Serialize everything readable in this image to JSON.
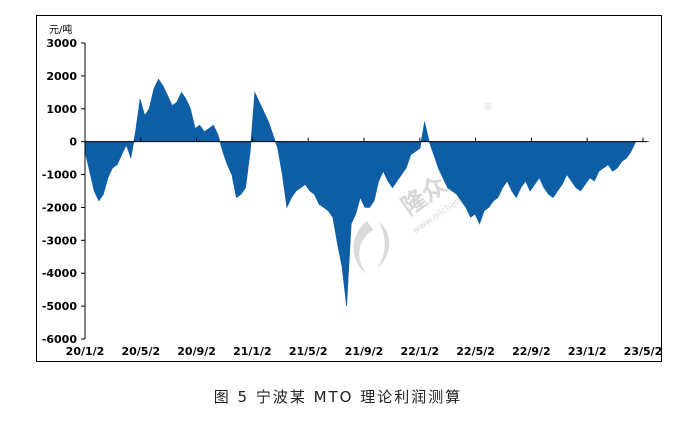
{
  "figure_caption": "图 5  宁波某 MTO 理论利润测算",
  "watermark": {
    "brand": "隆众资讯",
    "site": "www.oilchem.net",
    "mark": "®"
  },
  "chart_data": {
    "type": "area",
    "title": "",
    "ylabel": "元/吨",
    "xlabel": "",
    "ylim": [
      -6000,
      3000
    ],
    "yticks": [
      3000,
      2000,
      1000,
      0,
      -1000,
      -2000,
      -3000,
      -4000,
      -5000,
      -6000
    ],
    "ytick_labels": [
      "3000",
      "2000",
      "1000",
      "0",
      "-1000",
      "-2000",
      "-3000",
      "-4000",
      "-5000",
      "-6000"
    ],
    "xtick_labels": [
      "20/1/2",
      "20/5/2",
      "20/9/2",
      "21/1/2",
      "21/5/2",
      "21/9/2",
      "22/1/2",
      "22/5/2",
      "22/9/2",
      "23/1/2",
      "23/5/2"
    ],
    "grid": false,
    "legend": "none",
    "color": "#0e5ea6",
    "series": [
      {
        "x": [
          "2020-01-02",
          "2020-01-12",
          "2020-01-22",
          "2020-02-01",
          "2020-02-11",
          "2020-02-21",
          "2020-03-02",
          "2020-03-12",
          "2020-03-22",
          "2020-04-01",
          "2020-04-11",
          "2020-04-21",
          "2020-05-01",
          "2020-05-11",
          "2020-05-21",
          "2020-05-31",
          "2020-06-10",
          "2020-06-20",
          "2020-06-30",
          "2020-07-10",
          "2020-07-20",
          "2020-07-30",
          "2020-08-09",
          "2020-08-19",
          "2020-08-29",
          "2020-09-08",
          "2020-09-18",
          "2020-09-28",
          "2020-10-08",
          "2020-10-18",
          "2020-10-28",
          "2020-11-07",
          "2020-11-17",
          "2020-11-27",
          "2020-12-07",
          "2020-12-17",
          "2020-12-27",
          "2021-01-06",
          "2021-01-16",
          "2021-01-26",
          "2021-02-05",
          "2021-02-15",
          "2021-02-25",
          "2021-03-07",
          "2021-03-17",
          "2021-03-27",
          "2021-04-06",
          "2021-04-16",
          "2021-04-26",
          "2021-05-06",
          "2021-05-16",
          "2021-05-26",
          "2021-06-05",
          "2021-06-15",
          "2021-06-25",
          "2021-07-05",
          "2021-07-15",
          "2021-07-25",
          "2021-08-04",
          "2021-08-14",
          "2021-08-24",
          "2021-09-03",
          "2021-09-13",
          "2021-09-23",
          "2021-10-03",
          "2021-10-13",
          "2021-10-23",
          "2021-11-02",
          "2021-11-12",
          "2021-11-22",
          "2021-12-02",
          "2021-12-12",
          "2021-12-22",
          "2022-01-01",
          "2022-01-11",
          "2022-01-21",
          "2022-01-31",
          "2022-02-10",
          "2022-02-20",
          "2022-03-02",
          "2022-03-12",
          "2022-03-22",
          "2022-04-01",
          "2022-04-11",
          "2022-04-21",
          "2022-05-01",
          "2022-05-11",
          "2022-05-21",
          "2022-05-31",
          "2022-06-10",
          "2022-06-20",
          "2022-06-30",
          "2022-07-10",
          "2022-07-20",
          "2022-07-30",
          "2022-08-09",
          "2022-08-19",
          "2022-08-29",
          "2022-09-08",
          "2022-09-18",
          "2022-09-28",
          "2022-10-08",
          "2022-10-18",
          "2022-10-28",
          "2022-11-07",
          "2022-11-17",
          "2022-11-27",
          "2022-12-07",
          "2022-12-17",
          "2022-12-27",
          "2023-01-06",
          "2023-01-16",
          "2023-01-26",
          "2023-02-05",
          "2023-02-15",
          "2023-02-25",
          "2023-03-07",
          "2023-03-17",
          "2023-03-27",
          "2023-04-06",
          "2023-04-16",
          "2023-04-26",
          "2023-05-06",
          "2023-05-16"
        ],
        "values": [
          -300,
          -900,
          -1500,
          -1800,
          -1600,
          -1100,
          -800,
          -700,
          -400,
          -100,
          -500,
          300,
          1300,
          800,
          1000,
          1600,
          1900,
          1700,
          1400,
          1100,
          1200,
          1500,
          1300,
          1000,
          400,
          500,
          300,
          400,
          500,
          200,
          -300,
          -700,
          -1000,
          -1700,
          -1600,
          -1400,
          -300,
          1500,
          1200,
          900,
          600,
          200,
          -200,
          -1000,
          -2000,
          -1700,
          -1500,
          -1400,
          -1300,
          -1500,
          -1600,
          -1900,
          -2000,
          -2100,
          -2300,
          -3100,
          -3800,
          -5000,
          -2500,
          -2200,
          -1700,
          -2000,
          -2000,
          -1800,
          -1200,
          -900,
          -1200,
          -1400,
          -1200,
          -1000,
          -800,
          -400,
          -300,
          -200,
          600,
          0,
          -400,
          -800,
          -1100,
          -1400,
          -1500,
          -1600,
          -1800,
          -2000,
          -2300,
          -2200,
          -2500,
          -2100,
          -2000,
          -1800,
          -1700,
          -1400,
          -1200,
          -1500,
          -1700,
          -1400,
          -1200,
          -1500,
          -1300,
          -1100,
          -1400,
          -1600,
          -1700,
          -1500,
          -1300,
          -1000,
          -1200,
          -1400,
          -1500,
          -1300,
          -1100,
          -1200,
          -900,
          -800,
          -700,
          -900,
          -800,
          -600,
          -500,
          -300,
          0,
          0,
          0,
          0
        ]
      }
    ]
  }
}
